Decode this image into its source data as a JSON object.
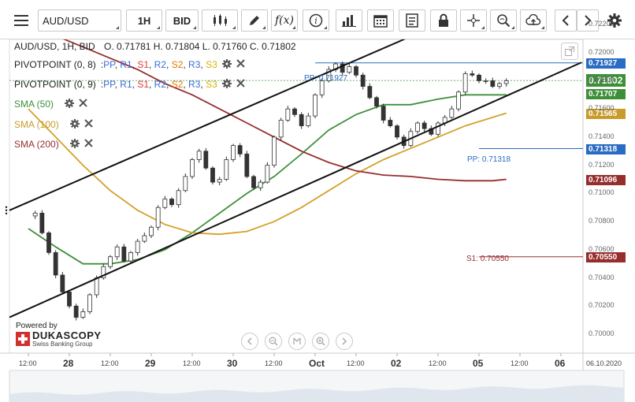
{
  "toolbar": {
    "symbol": "AUD/USD",
    "timeframe": "1H",
    "price_type": "BID",
    "icons": [
      "menu-icon",
      "candles-icon",
      "pen-icon",
      "function-icon",
      "info-icon",
      "volume-bars-icon",
      "calendar-icon",
      "report-icon",
      "lock-icon",
      "crosshair-icon",
      "zoom-icon",
      "upload-icon",
      "nav-left-icon",
      "nav-right-icon",
      "settings-icon"
    ]
  },
  "header": {
    "symbol_line": "AUD/USD, 1H, BID",
    "ohlc": "O. 0.71781 H. 0.71804 L. 0.71760 C. 0.71802"
  },
  "indicators": {
    "pivot1": {
      "name": "PIVOTPOINT (0, 8)",
      "levels": [
        "PP",
        "R1",
        "S1",
        "R2",
        "S2",
        "R3",
        "S3"
      ]
    },
    "pivot2": {
      "name": "PIVOTPOINT (0, 9)",
      "levels": [
        "PP",
        "R1",
        "S1",
        "R2",
        "S2",
        "R3",
        "S3"
      ]
    },
    "level_colors": [
      "#3a6fd8",
      "#3a6fd8",
      "#e03a3a",
      "#3a6fd8",
      "#e07a00",
      "#3a6fd8",
      "#d6b500"
    ],
    "sma50": {
      "label": "SMA (50)",
      "color": "#3f8f3a"
    },
    "sma100": {
      "label": "SMA (100)",
      "color": "#d4a12a"
    },
    "sma200": {
      "label": "SMA (200)",
      "color": "#962e2e"
    }
  },
  "branding": {
    "powered_by": "Powered by",
    "name": "DUKASCOPY",
    "sub": "Swiss Banking Group"
  },
  "price_tags": [
    {
      "text": "0.71927",
      "value": 0.71927,
      "color": "#2a6cc4"
    },
    {
      "text": "0.71802",
      "value": 0.71802,
      "color": "#3f8f3a"
    },
    {
      "text": "0.71707",
      "value": 0.71707,
      "color": "#3f8f3a"
    },
    {
      "text": "0.71565",
      "value": 0.71565,
      "color": "#c89b2c"
    },
    {
      "text": "0.71318",
      "value": 0.71318,
      "color": "#2a6cc4"
    },
    {
      "text": "0.71096",
      "value": 0.71096,
      "color": "#962e2e"
    },
    {
      "text": "0.70550",
      "value": 0.7055,
      "color": "#962e2e"
    }
  ],
  "pivot_labels": {
    "pp1": "PP: 0.71927",
    "pp2": "PP: 0.71318",
    "s1": "S1: 0.70550"
  },
  "chart_data": {
    "type": "line",
    "title": "AUD/USD, 1H, BID",
    "y_ticks": [
      "0.72200",
      "0.72000",
      "0.71800",
      "0.71600",
      "0.71400",
      "0.71200",
      "0.71000",
      "0.70800",
      "0.70600",
      "0.70400",
      "0.70200",
      "0.70000"
    ],
    "ylim": [
      0.7,
      0.722
    ],
    "x_ticks": [
      "12:00",
      "28",
      "12:00",
      "29",
      "12:00",
      "30",
      "12:00",
      "Oct",
      "12:00",
      "02",
      "12:00",
      "05",
      "12:00",
      "06"
    ],
    "x_tick_bold": [
      false,
      true,
      false,
      true,
      false,
      true,
      false,
      true,
      false,
      true,
      false,
      true,
      false,
      true
    ],
    "x_tick_hours": [
      0,
      12,
      24,
      36,
      48,
      60,
      72,
      84,
      96,
      108,
      120,
      132,
      144,
      156
    ],
    "date_label": "06.10.2020",
    "candles_approx_close": [
      [
        0,
        0.7084
      ],
      [
        2,
        0.7086
      ],
      [
        4,
        0.7072
      ],
      [
        6,
        0.7058
      ],
      [
        8,
        0.7042
      ],
      [
        10,
        0.703
      ],
      [
        12,
        0.702
      ],
      [
        14,
        0.7012
      ],
      [
        16,
        0.7016
      ],
      [
        18,
        0.7028
      ],
      [
        20,
        0.704
      ],
      [
        22,
        0.7048
      ],
      [
        24,
        0.7055
      ],
      [
        26,
        0.7062
      ],
      [
        28,
        0.7052
      ],
      [
        30,
        0.7058
      ],
      [
        32,
        0.7066
      ],
      [
        34,
        0.707
      ],
      [
        36,
        0.7076
      ],
      [
        38,
        0.709
      ],
      [
        40,
        0.7096
      ],
      [
        42,
        0.7092
      ],
      [
        44,
        0.7102
      ],
      [
        46,
        0.7112
      ],
      [
        48,
        0.7124
      ],
      [
        50,
        0.713
      ],
      [
        52,
        0.7118
      ],
      [
        54,
        0.7108
      ],
      [
        56,
        0.711
      ],
      [
        58,
        0.7124
      ],
      [
        60,
        0.7134
      ],
      [
        62,
        0.7128
      ],
      [
        64,
        0.7112
      ],
      [
        66,
        0.7104
      ],
      [
        68,
        0.7108
      ],
      [
        70,
        0.712
      ],
      [
        72,
        0.714
      ],
      [
        74,
        0.7152
      ],
      [
        76,
        0.716
      ],
      [
        78,
        0.7156
      ],
      [
        80,
        0.7148
      ],
      [
        82,
        0.7155
      ],
      [
        84,
        0.717
      ],
      [
        86,
        0.718
      ],
      [
        88,
        0.7188
      ],
      [
        90,
        0.7192
      ],
      [
        92,
        0.7186
      ],
      [
        94,
        0.719
      ],
      [
        96,
        0.7184
      ],
      [
        98,
        0.7176
      ],
      [
        100,
        0.7168
      ],
      [
        102,
        0.7162
      ],
      [
        104,
        0.7152
      ],
      [
        106,
        0.7148
      ],
      [
        108,
        0.714
      ],
      [
        110,
        0.7134
      ],
      [
        112,
        0.7144
      ],
      [
        114,
        0.715
      ],
      [
        116,
        0.7146
      ],
      [
        118,
        0.7142
      ],
      [
        120,
        0.715
      ],
      [
        122,
        0.7154
      ],
      [
        124,
        0.716
      ],
      [
        126,
        0.7172
      ],
      [
        128,
        0.7185
      ],
      [
        130,
        0.7184
      ],
      [
        132,
        0.718
      ],
      [
        134,
        0.718
      ],
      [
        136,
        0.7176
      ],
      [
        138,
        0.7178
      ],
      [
        140,
        0.718
      ]
    ],
    "series": [
      {
        "name": "SMA (50)",
        "color": "#3f8f3a",
        "points": [
          [
            0,
            0.7075
          ],
          [
            8,
            0.7062
          ],
          [
            16,
            0.705
          ],
          [
            24,
            0.705
          ],
          [
            32,
            0.7053
          ],
          [
            40,
            0.706
          ],
          [
            48,
            0.7072
          ],
          [
            56,
            0.7086
          ],
          [
            64,
            0.71
          ],
          [
            72,
            0.7112
          ],
          [
            80,
            0.7128
          ],
          [
            88,
            0.7145
          ],
          [
            96,
            0.7156
          ],
          [
            104,
            0.7163
          ],
          [
            112,
            0.7163
          ],
          [
            120,
            0.7167
          ],
          [
            128,
            0.717
          ],
          [
            136,
            0.717
          ],
          [
            140,
            0.717
          ]
        ]
      },
      {
        "name": "SMA (100)",
        "color": "#d4a12a",
        "points": [
          [
            0,
            0.716
          ],
          [
            8,
            0.714
          ],
          [
            16,
            0.712
          ],
          [
            24,
            0.7102
          ],
          [
            32,
            0.7088
          ],
          [
            40,
            0.7078
          ],
          [
            48,
            0.7072
          ],
          [
            56,
            0.7071
          ],
          [
            64,
            0.7073
          ],
          [
            72,
            0.708
          ],
          [
            80,
            0.709
          ],
          [
            88,
            0.7102
          ],
          [
            96,
            0.7114
          ],
          [
            104,
            0.7124
          ],
          [
            112,
            0.7132
          ],
          [
            120,
            0.714
          ],
          [
            128,
            0.7148
          ],
          [
            136,
            0.7154
          ],
          [
            140,
            0.7157
          ]
        ]
      },
      {
        "name": "SMA (200)",
        "color": "#962e2e",
        "points": [
          [
            0,
            0.7218
          ],
          [
            8,
            0.7212
          ],
          [
            16,
            0.7204
          ],
          [
            24,
            0.7196
          ],
          [
            32,
            0.7188
          ],
          [
            40,
            0.7178
          ],
          [
            48,
            0.717
          ],
          [
            56,
            0.716
          ],
          [
            64,
            0.715
          ],
          [
            72,
            0.714
          ],
          [
            80,
            0.713
          ],
          [
            88,
            0.7122
          ],
          [
            96,
            0.7116
          ],
          [
            104,
            0.7113
          ],
          [
            112,
            0.7112
          ],
          [
            120,
            0.711
          ],
          [
            128,
            0.7109
          ],
          [
            136,
            0.7109
          ],
          [
            140,
            0.711
          ]
        ]
      }
    ],
    "trendlines": [
      {
        "name": "upper channel",
        "from": [
          0,
          0.7088
        ],
        "to": [
          122,
          0.7222
        ]
      },
      {
        "name": "lower channel",
        "from": [
          0,
          0.7012
        ],
        "to": [
          162,
          0.7193
        ]
      }
    ],
    "pivot_lines": [
      {
        "value": 0.71927,
        "from_hour": 84,
        "color": "#2a6cc4"
      },
      {
        "value": 0.71318,
        "from_hour": 132,
        "color": "#2a6cc4"
      },
      {
        "value": 0.7055,
        "from_hour": 132,
        "color": "#962e2e"
      }
    ],
    "grid": false,
    "legend": "top-left"
  },
  "navigator_buttons": [
    "nav-back-icon",
    "zoom-out-icon",
    "fit-icon",
    "zoom-in-icon",
    "nav-forward-icon"
  ]
}
